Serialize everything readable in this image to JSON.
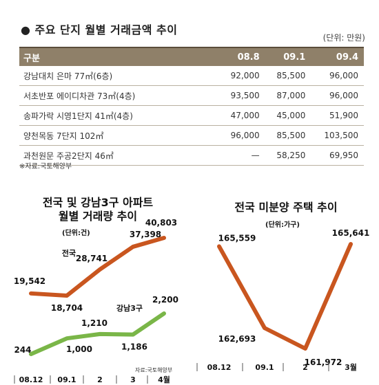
{
  "table": {
    "title": "● 주요 단지 월별 거래금액 추이",
    "unit": "(단위: 만원)",
    "headers": [
      "구분",
      "08.8",
      "09.1",
      "09.4"
    ],
    "rows": [
      {
        "name": "강남대치 은마 77㎡(6층)",
        "values": [
          "92,000",
          "85,500",
          "96,000"
        ]
      },
      {
        "name": "서초반포 에이디차관 73㎡(4층)",
        "values": [
          "93,500",
          "87,000",
          "96,000"
        ]
      },
      {
        "name": "송파가락 시영1단지 41㎡(4층)",
        "values": [
          "47,000",
          "45,000",
          "51,900"
        ]
      },
      {
        "name": "양천목동 7단지 102㎡",
        "values": [
          "96,000",
          "85,500",
          "103,500"
        ]
      },
      {
        "name": "과천원문 주공2단지 46㎡",
        "values": [
          "—",
          "58,250",
          "69,950"
        ]
      }
    ],
    "source": "※자료:국토해양부"
  },
  "colors": {
    "orange": "#c9561f",
    "green": "#7ab648",
    "header_bg": "#8f8069"
  },
  "chart_data": [
    {
      "type": "line",
      "title": "전국 및 강남3구 아파트 월별 거래량 추이",
      "title_lines": [
        "전국 및 강남3구 아파트",
        "월별 거래량 추이"
      ],
      "unit": "(단위:건)",
      "categories": [
        "08.12",
        "09.1",
        "2",
        "3",
        "4월"
      ],
      "series": [
        {
          "name": "전국",
          "values": [
            19542,
            18704,
            28741,
            37398,
            40803
          ],
          "labels": [
            "19,542",
            "18,704",
            "28,741",
            "37,398",
            "40,803"
          ],
          "color": "#c9561f"
        },
        {
          "name": "강남3구",
          "values": [
            244,
            1000,
            1210,
            1186,
            2200
          ],
          "labels": [
            "244",
            "1,000",
            "1,210",
            "1,186",
            "2,200"
          ],
          "color": "#7ab648"
        }
      ],
      "note": "자료:국토해양부"
    },
    {
      "type": "line",
      "title": "전국 미분양 주택 추이",
      "unit": "(단위:가구)",
      "categories": [
        "08.12",
        "09.1",
        "2",
        "3월"
      ],
      "series": [
        {
          "values": [
            165559,
            162693,
            161972,
            165641
          ],
          "labels": [
            "165,559",
            "162,693",
            "161,972",
            "165,641"
          ],
          "color": "#c9561f"
        }
      ]
    }
  ]
}
